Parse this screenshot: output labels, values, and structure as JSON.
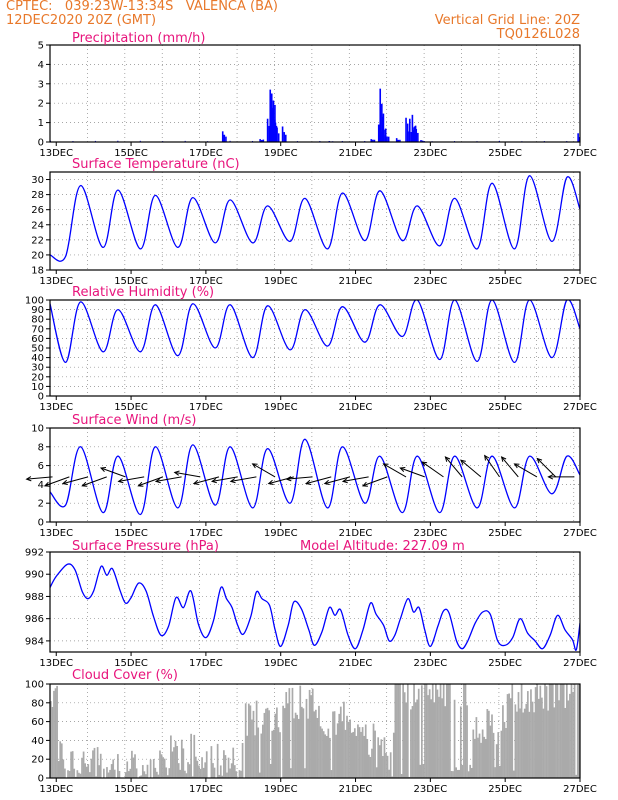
{
  "header": {
    "line1": "CPTEC:   039:23W-13:34S   VALENCA (BA)",
    "line2": "12DEC2020 20Z (GMT)",
    "grid_note": "Vertical Grid Line: 20Z",
    "code": "TQ0126L028"
  },
  "x_axis": {
    "ticks": [
      "13DEC",
      "15DEC",
      "17DEC",
      "19DEC",
      "21DEC",
      "23DEC",
      "25DEC",
      "27DEC"
    ],
    "tick_days": [
      13,
      15,
      17,
      19,
      21,
      23,
      25,
      27
    ],
    "start_day": 12.833,
    "end_day": 27
  },
  "chart_data": [
    {
      "type": "bar",
      "title": "Precipitation (mm/h)",
      "ylim": [
        0,
        5
      ],
      "yticks": [
        0,
        1,
        2,
        3,
        4,
        5
      ],
      "color": "#0000ff",
      "events": [
        {
          "day": 17.45,
          "value": 0.55
        },
        {
          "day": 18.45,
          "value": 0.15
        },
        {
          "day": 18.65,
          "value": 1.2
        },
        {
          "day": 18.72,
          "value": 2.7
        },
        {
          "day": 18.76,
          "value": 2.5
        },
        {
          "day": 18.8,
          "value": 1.6
        },
        {
          "day": 18.86,
          "value": 1.0
        },
        {
          "day": 19.05,
          "value": 0.8
        },
        {
          "day": 20.3,
          "value": 0.05
        },
        {
          "day": 21.42,
          "value": 0.15
        },
        {
          "day": 21.62,
          "value": 0.9
        },
        {
          "day": 21.66,
          "value": 2.75
        },
        {
          "day": 21.72,
          "value": 1.3
        },
        {
          "day": 21.8,
          "value": 0.35
        },
        {
          "day": 22.1,
          "value": 0.2
        },
        {
          "day": 22.35,
          "value": 1.25
        },
        {
          "day": 22.45,
          "value": 1.2
        },
        {
          "day": 22.52,
          "value": 1.4
        },
        {
          "day": 22.58,
          "value": 0.8
        },
        {
          "day": 22.75,
          "value": 0.1
        },
        {
          "day": 26.95,
          "value": 0.45
        }
      ]
    },
    {
      "type": "line",
      "title": "Surface Temperature (nC)",
      "ylim": [
        18,
        31
      ],
      "yticks": [
        18,
        20,
        22,
        24,
        26,
        28,
        30
      ],
      "color": "#0000ff",
      "daily_max": [
        28.5,
        29.2,
        28.6,
        27.9,
        27.6,
        27.3,
        26.5,
        27.5,
        28.2,
        28.5,
        26.5,
        27.5,
        29.5,
        30.5,
        30.3
      ],
      "daily_min": [
        19.6,
        19.8,
        21.0,
        20.8,
        21.0,
        21.6,
        21.6,
        21.8,
        20.8,
        21.9,
        21.9,
        21.2,
        20.8,
        20.8,
        21.8
      ],
      "start_value": 20.0
    },
    {
      "type": "line",
      "title": "Relative Humidity (%)",
      "ylim": [
        0,
        100
      ],
      "yticks": [
        0,
        10,
        20,
        30,
        40,
        50,
        60,
        70,
        80,
        90,
        100
      ],
      "color": "#0000ff",
      "daily_max": [
        100,
        98,
        90,
        95,
        96,
        95,
        94,
        90,
        93,
        95,
        100,
        100,
        100,
        100,
        100
      ],
      "daily_min": [
        35,
        35,
        46,
        46,
        42,
        50,
        40,
        48,
        52,
        56,
        62,
        38,
        36,
        35,
        40
      ],
      "start_value": 96
    },
    {
      "type": "line",
      "title": "Surface Wind (m/s)",
      "ylim": [
        0,
        10
      ],
      "yticks": [
        0,
        2,
        4,
        6,
        8,
        10
      ],
      "color": "#0000ff",
      "daily_max": [
        8.0,
        8.0,
        7.0,
        8.0,
        8.2,
        8.0,
        7.8,
        8.8,
        8.0,
        7.0,
        7.0,
        7.0,
        7.0,
        7.0,
        7.0
      ],
      "daily_min": [
        2.0,
        1.8,
        1.0,
        0.8,
        1.5,
        1.8,
        1.5,
        2.0,
        1.5,
        2.0,
        1.0,
        1.0,
        1.5,
        1.5,
        3.0
      ],
      "start_value": 3.2,
      "vector_days": [
        12.9,
        13.35,
        13.85,
        14.35,
        14.85,
        15.35,
        15.85,
        16.35,
        16.85,
        17.35,
        17.85,
        18.35,
        18.85,
        19.35,
        19.85,
        20.35,
        20.85,
        21.35,
        21.85,
        22.35,
        22.85,
        23.35,
        23.85,
        24.35,
        24.85,
        25.35,
        25.85,
        26.35,
        26.85
      ],
      "vector_dir_deg": [
        175,
        160,
        165,
        160,
        200,
        170,
        160,
        170,
        190,
        165,
        170,
        170,
        210,
        165,
        175,
        165,
        165,
        170,
        160,
        210,
        200,
        215,
        230,
        220,
        235,
        230,
        210,
        225,
        180
      ]
    },
    {
      "type": "line",
      "title": "Surface Pressure (hPa)",
      "annotation": "Model Altitude: 227.09 m",
      "ylim": [
        983,
        992
      ],
      "yticks": [
        984,
        986,
        988,
        990,
        992
      ],
      "color": "#0000ff",
      "series_points": [
        [
          12.833,
          988.8
        ],
        [
          13.0,
          989.8
        ],
        [
          13.3,
          990.9
        ],
        [
          13.5,
          990.4
        ],
        [
          13.7,
          988.4
        ],
        [
          13.85,
          987.8
        ],
        [
          14.0,
          988.5
        ],
        [
          14.2,
          990.7
        ],
        [
          14.35,
          989.9
        ],
        [
          14.5,
          990.5
        ],
        [
          14.7,
          988.6
        ],
        [
          14.85,
          987.4
        ],
        [
          15.0,
          987.9
        ],
        [
          15.2,
          989.2
        ],
        [
          15.4,
          988.5
        ],
        [
          15.6,
          986.2
        ],
        [
          15.8,
          984.5
        ],
        [
          16.0,
          985.3
        ],
        [
          16.2,
          987.9
        ],
        [
          16.4,
          987.0
        ],
        [
          16.6,
          988.5
        ],
        [
          16.8,
          985.5
        ],
        [
          17.0,
          984.3
        ],
        [
          17.2,
          985.8
        ],
        [
          17.4,
          988.8
        ],
        [
          17.55,
          987.8
        ],
        [
          17.7,
          987.0
        ],
        [
          17.85,
          985.4
        ],
        [
          18.0,
          984.6
        ],
        [
          18.2,
          986.2
        ],
        [
          18.35,
          988.4
        ],
        [
          18.5,
          987.8
        ],
        [
          18.7,
          987.2
        ],
        [
          18.85,
          985.0
        ],
        [
          19.0,
          983.5
        ],
        [
          19.2,
          985.4
        ],
        [
          19.35,
          987.5
        ],
        [
          19.55,
          986.9
        ],
        [
          19.75,
          985.0
        ],
        [
          19.9,
          983.6
        ],
        [
          20.1,
          984.8
        ],
        [
          20.3,
          987.0
        ],
        [
          20.45,
          986.3
        ],
        [
          20.6,
          986.8
        ],
        [
          20.8,
          984.5
        ],
        [
          21.0,
          983.3
        ],
        [
          21.2,
          985.0
        ],
        [
          21.4,
          987.4
        ],
        [
          21.55,
          986.4
        ],
        [
          21.75,
          985.4
        ],
        [
          21.9,
          984.0
        ],
        [
          22.05,
          984.5
        ],
        [
          22.2,
          986.0
        ],
        [
          22.4,
          987.8
        ],
        [
          22.55,
          986.6
        ],
        [
          22.7,
          987.0
        ],
        [
          22.85,
          985.0
        ],
        [
          23.0,
          983.5
        ],
        [
          23.2,
          985.3
        ],
        [
          23.35,
          986.7
        ],
        [
          23.5,
          986.5
        ],
        [
          23.7,
          984.0
        ],
        [
          23.85,
          983.3
        ],
        [
          24.0,
          984.0
        ],
        [
          24.2,
          985.6
        ],
        [
          24.4,
          986.6
        ],
        [
          24.6,
          986.4
        ],
        [
          24.8,
          984.0
        ],
        [
          25.0,
          983.6
        ],
        [
          25.2,
          984.3
        ],
        [
          25.4,
          986.0
        ],
        [
          25.6,
          984.7
        ],
        [
          25.8,
          984.0
        ],
        [
          26.0,
          983.3
        ],
        [
          26.2,
          984.5
        ],
        [
          26.4,
          986.3
        ],
        [
          26.6,
          985.0
        ],
        [
          26.8,
          984.1
        ],
        [
          26.9,
          983.2
        ],
        [
          27.0,
          985.6
        ]
      ]
    },
    {
      "type": "bar",
      "title": "Cloud Cover (%)",
      "ylim": [
        0,
        100
      ],
      "yticks": [
        0,
        20,
        40,
        60,
        80,
        100
      ],
      "color": "#aaaaaa",
      "daily_means": [
        92,
        18,
        12,
        8,
        30,
        15,
        62,
        85,
        65,
        38,
        95,
        95,
        58,
        90,
        92
      ],
      "seed": 7
    }
  ]
}
